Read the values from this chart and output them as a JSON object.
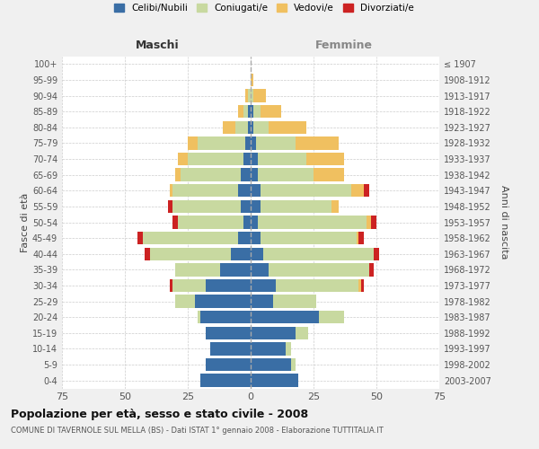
{
  "age_groups": [
    "0-4",
    "5-9",
    "10-14",
    "15-19",
    "20-24",
    "25-29",
    "30-34",
    "35-39",
    "40-44",
    "45-49",
    "50-54",
    "55-59",
    "60-64",
    "65-69",
    "70-74",
    "75-79",
    "80-84",
    "85-89",
    "90-94",
    "95-99",
    "100+"
  ],
  "birth_years": [
    "2003-2007",
    "1998-2002",
    "1993-1997",
    "1988-1992",
    "1983-1987",
    "1978-1982",
    "1973-1977",
    "1968-1972",
    "1963-1967",
    "1958-1962",
    "1953-1957",
    "1948-1952",
    "1943-1947",
    "1938-1942",
    "1933-1937",
    "1928-1932",
    "1923-1927",
    "1918-1922",
    "1913-1917",
    "1908-1912",
    "≤ 1907"
  ],
  "colors": {
    "celibe": "#3a6ea5",
    "coniugato": "#c8d9a0",
    "vedovo": "#f0c060",
    "divorziato": "#cc2222"
  },
  "maschi": {
    "celibe": [
      20,
      18,
      16,
      18,
      20,
      22,
      18,
      12,
      8,
      5,
      3,
      4,
      5,
      4,
      3,
      2,
      1,
      1,
      0,
      0,
      0
    ],
    "coniugato": [
      0,
      0,
      0,
      0,
      1,
      8,
      13,
      18,
      32,
      38,
      26,
      27,
      26,
      24,
      22,
      19,
      5,
      2,
      1,
      0,
      0
    ],
    "vedovo": [
      0,
      0,
      0,
      0,
      0,
      0,
      0,
      0,
      0,
      0,
      0,
      0,
      1,
      2,
      4,
      4,
      5,
      2,
      1,
      0,
      0
    ],
    "divorziato": [
      0,
      0,
      0,
      0,
      0,
      0,
      1,
      0,
      2,
      2,
      2,
      2,
      0,
      0,
      0,
      0,
      0,
      0,
      0,
      0,
      0
    ]
  },
  "femmine": {
    "nubile": [
      19,
      16,
      14,
      18,
      27,
      9,
      10,
      7,
      5,
      4,
      3,
      4,
      4,
      3,
      3,
      2,
      1,
      1,
      0,
      0,
      0
    ],
    "coniugata": [
      0,
      2,
      2,
      5,
      10,
      17,
      33,
      40,
      44,
      38,
      43,
      28,
      36,
      22,
      19,
      16,
      6,
      3,
      1,
      0,
      0
    ],
    "vedova": [
      0,
      0,
      0,
      0,
      0,
      0,
      1,
      0,
      0,
      1,
      2,
      3,
      5,
      12,
      15,
      17,
      15,
      8,
      5,
      1,
      0
    ],
    "divorziata": [
      0,
      0,
      0,
      0,
      0,
      0,
      1,
      2,
      2,
      2,
      2,
      0,
      2,
      0,
      0,
      0,
      0,
      0,
      0,
      0,
      0
    ]
  },
  "xlim": 75,
  "title": "Popolazione per età, sesso e stato civile - 2008",
  "subtitle": "COMUNE DI TAVERNOLE SUL MELLA (BS) - Dati ISTAT 1° gennaio 2008 - Elaborazione TUTTITALIA.IT",
  "ylabel_left": "Fasce di età",
  "ylabel_right": "Anni di nascita",
  "header_maschi": "Maschi",
  "header_femmine": "Femmine",
  "legend_labels": [
    "Celibi/Nubili",
    "Coniugati/e",
    "Vedovi/e",
    "Divorziati/e"
  ],
  "bg_color": "#f0f0f0",
  "plot_bg": "#ffffff"
}
